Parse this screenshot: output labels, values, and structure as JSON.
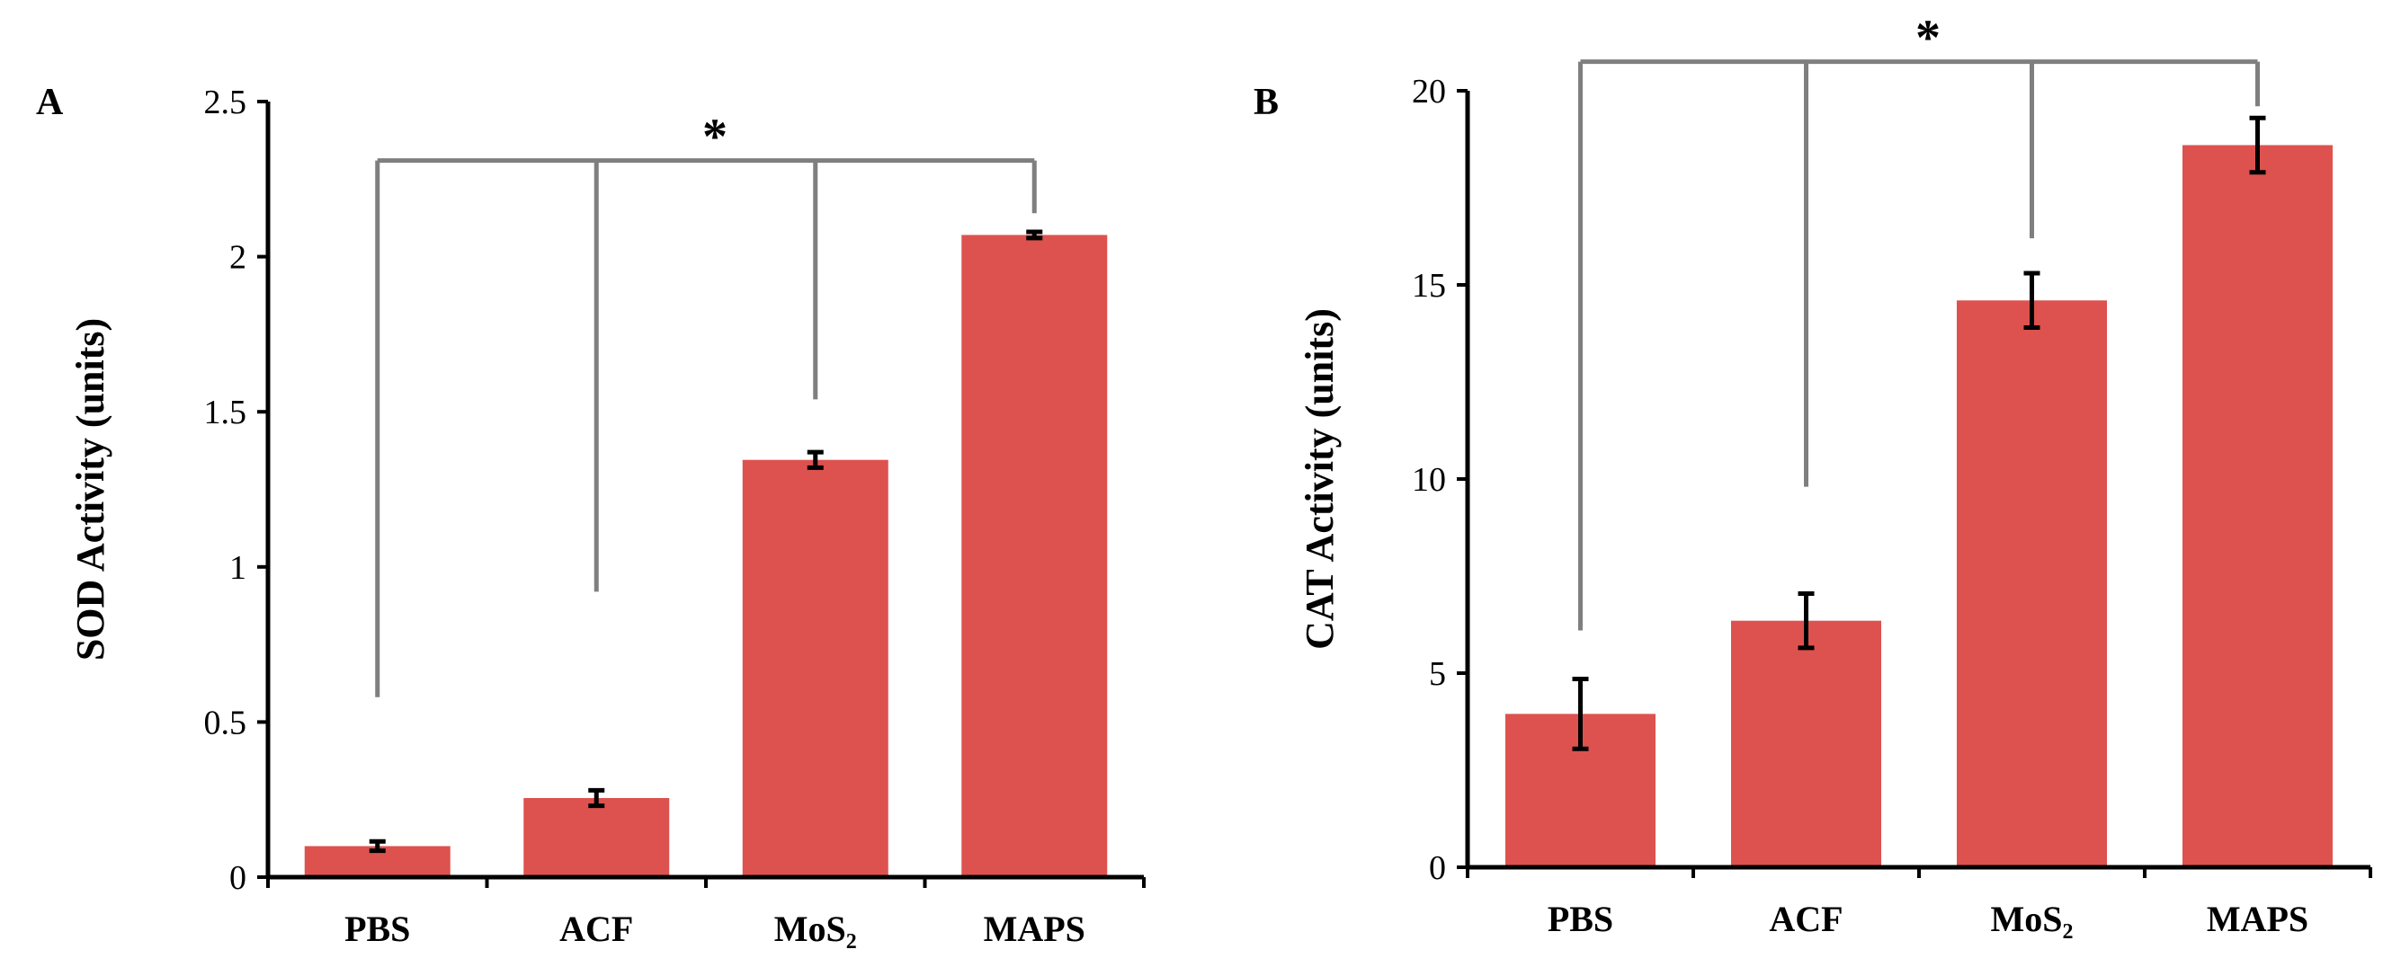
{
  "bar_color": "#dd524e",
  "axis_color": "#000000",
  "bracket_color": "#7f7f7f",
  "chart_data": [
    {
      "type": "bar",
      "panel_label": "A",
      "title": "",
      "xlabel": "",
      "ylabel": "SOD Activity (units)",
      "ylim": [
        0,
        2.5
      ],
      "yticks": [
        0,
        0.5,
        1,
        1.5,
        2,
        2.5
      ],
      "ytick_labels": [
        "0",
        "0.5",
        "1",
        "1.5",
        "2",
        "2.5"
      ],
      "categories": [
        "PBS",
        "ACF",
        "MoS₂",
        "MAPS"
      ],
      "values": [
        0.1,
        0.255,
        1.345,
        2.07
      ],
      "errors": [
        0.015,
        0.025,
        0.025,
        0.01
      ],
      "significance": {
        "label": "*",
        "bracket_y": 2.31,
        "drop_ends": [
          0.58,
          0.92,
          1.54,
          2.14
        ]
      }
    },
    {
      "type": "bar",
      "panel_label": "B",
      "title": "",
      "xlabel": "",
      "ylabel": "CAT Activity (units)",
      "ylim": [
        0,
        20
      ],
      "yticks": [
        0,
        5,
        10,
        15,
        20
      ],
      "ytick_labels": [
        "0",
        "5",
        "10",
        "15",
        "20"
      ],
      "categories": [
        "PBS",
        "ACF",
        "MoS₂",
        "MAPS"
      ],
      "values": [
        3.95,
        6.35,
        14.6,
        18.6
      ],
      "errors": [
        0.9,
        0.7,
        0.7,
        0.7
      ],
      "significance": {
        "label": "*",
        "bracket_y": 20.75,
        "drop_ends": [
          6.1,
          9.8,
          16.2,
          19.6
        ]
      }
    }
  ]
}
